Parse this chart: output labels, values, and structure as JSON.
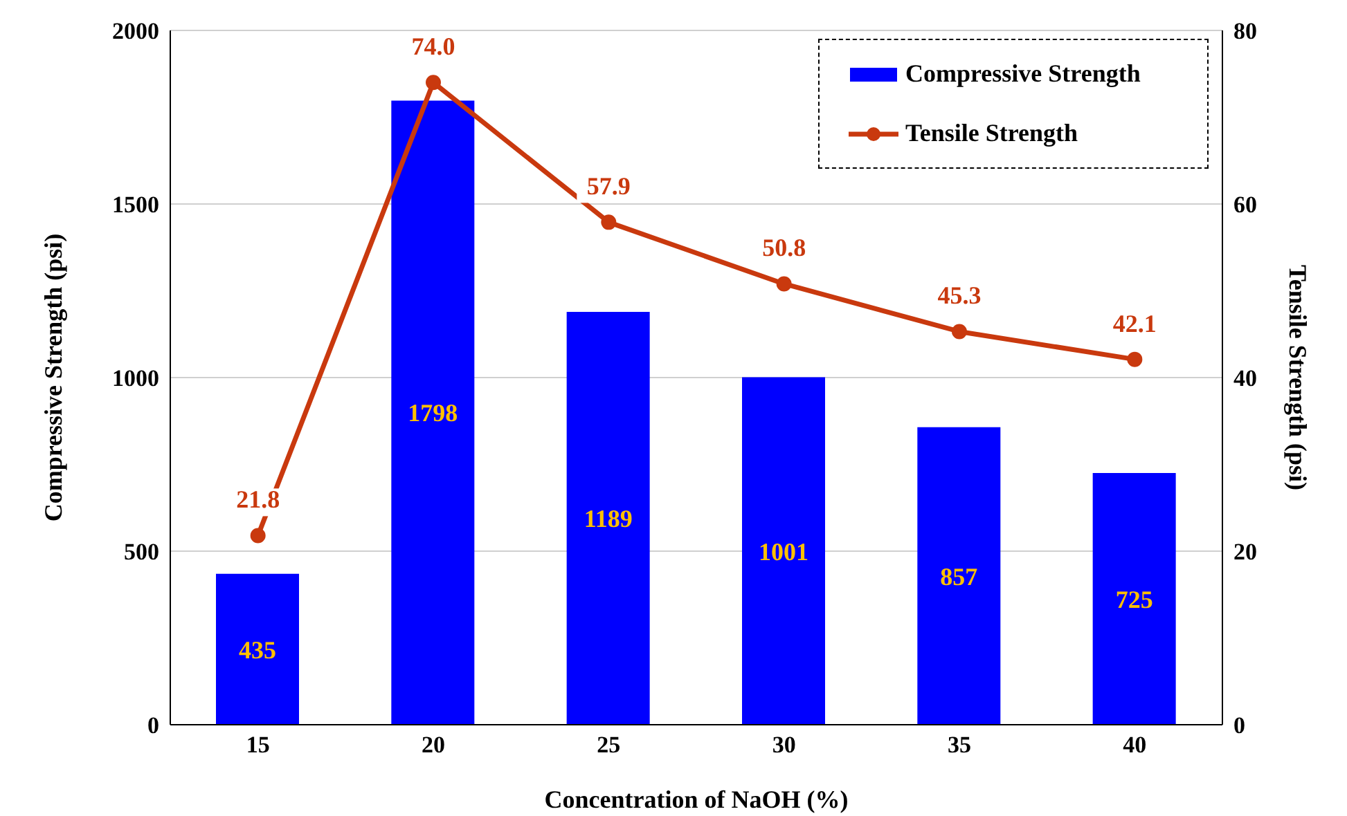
{
  "chart_data": {
    "type": "bar",
    "xlabel": "Concentration of NaOH (%)",
    "ylabel": "Compressive Strength (psi)",
    "y2label": "Tensile Strength (psi)",
    "categories": [
      "15",
      "20",
      "25",
      "30",
      "35",
      "40"
    ],
    "series": [
      {
        "name": "Compressive Strength",
        "color": "#0000ff",
        "values": [
          435,
          1798,
          1189,
          1001,
          857,
          725
        ]
      },
      {
        "name": "Tensile Strength",
        "type": "line",
        "axis": "y2",
        "color": "#c9390e",
        "marker": "circle",
        "values": [
          21.8,
          74.0,
          57.9,
          50.8,
          45.3,
          42.1
        ],
        "value_labels": [
          "21.8",
          "74.0",
          "57.9",
          "50.8",
          "45.3",
          "42.1"
        ]
      }
    ],
    "data_labels": true,
    "ylim": [
      0,
      2000
    ],
    "yticks": [
      0,
      500,
      1000,
      1500,
      2000
    ],
    "y2lim": [
      0,
      80
    ],
    "y2ticks": [
      0,
      20,
      40,
      60,
      80
    ],
    "grid": "y",
    "legend": "top right"
  }
}
